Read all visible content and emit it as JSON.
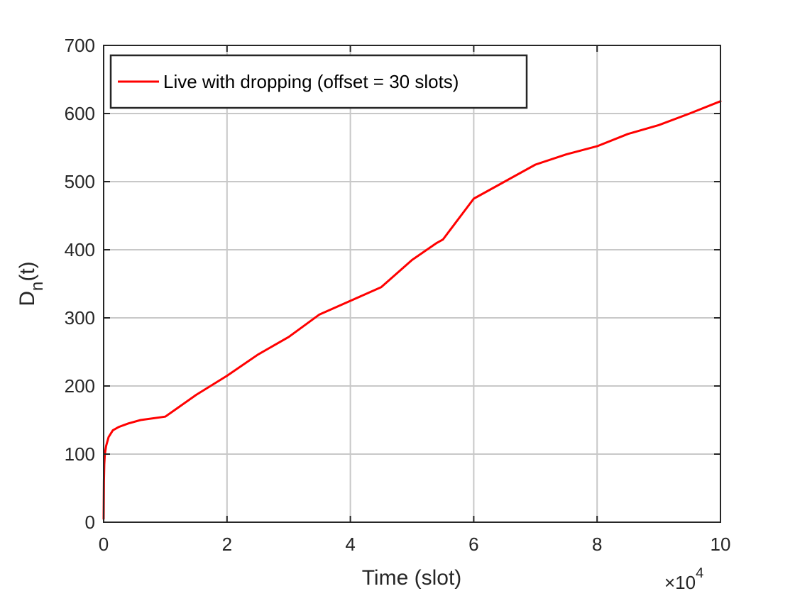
{
  "chart_data": {
    "type": "line",
    "title": "",
    "xlabel": "Time (slot)",
    "ylabel_main": "D",
    "ylabel_sub": "n",
    "ylabel_tail": "(t)",
    "x_exponent_prefix": "×10",
    "x_exponent_power": "4",
    "xlim": [
      0,
      10
    ],
    "ylim": [
      0,
      700
    ],
    "x_scale_note": "x values in units of 10^4 slots",
    "xticks": [
      0,
      2,
      4,
      6,
      8,
      10
    ],
    "xtick_labels": [
      "0",
      "2",
      "4",
      "6",
      "8",
      "10"
    ],
    "yticks": [
      0,
      100,
      200,
      300,
      400,
      500,
      600,
      700
    ],
    "ytick_labels": [
      "0",
      "100",
      "200",
      "300",
      "400",
      "500",
      "600",
      "700"
    ],
    "grid": true,
    "legend_position": "top-left",
    "line_color": "#ff0000",
    "series": [
      {
        "name": "Live with dropping (offset = 30 slots)",
        "x": [
          0,
          0.005,
          0.01,
          0.02,
          0.04,
          0.08,
          0.15,
          0.25,
          0.4,
          0.6,
          1.0,
          1.5,
          2.0,
          2.5,
          3.0,
          3.5,
          4.0,
          4.5,
          5.0,
          5.4,
          5.5,
          6.0,
          6.5,
          7.0,
          7.5,
          8.0,
          8.5,
          9.0,
          9.5,
          10.0
        ],
        "y": [
          5,
          60,
          85,
          100,
          112,
          125,
          135,
          140,
          145,
          150,
          155,
          187,
          215,
          246,
          272,
          305,
          325,
          345,
          385,
          410,
          415,
          475,
          500,
          525,
          540,
          552,
          570,
          583,
          600,
          618
        ]
      }
    ]
  }
}
